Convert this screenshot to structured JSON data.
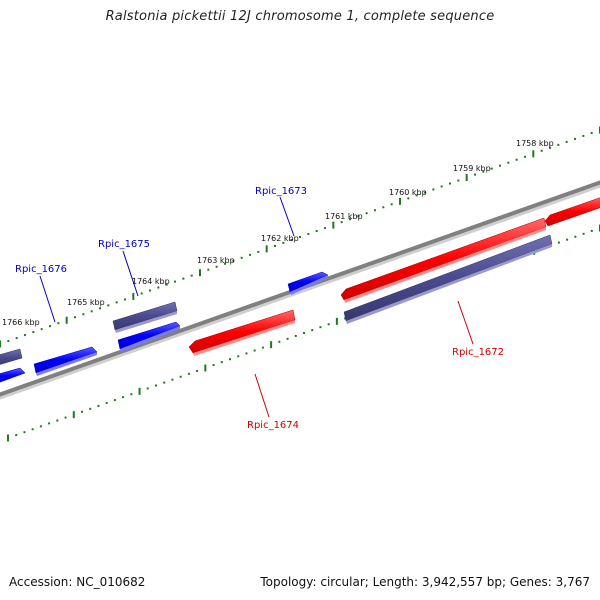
{
  "title": "Ralstonia pickettii 12J chromosome 1, complete sequence",
  "footer": {
    "accession": "Accession: NC_010682",
    "summary": "Topology: circular; Length: 3,942,557 bp; Genes: 3,767"
  },
  "colors": {
    "backbone": "#808080",
    "tick": "#1e7a1e",
    "forward_label": "#0000cc",
    "reverse_label": "#cc0000",
    "forward_gene": "#0000ff",
    "reverse_gene": "#ff0000",
    "gene_dark": "#4a4a8f"
  },
  "scale_ticks": [
    {
      "label": "1758 kbp"
    },
    {
      "label": "1759 kbp"
    },
    {
      "label": "1760 kbp"
    },
    {
      "label": "1761 kbp"
    },
    {
      "label": "1762 kbp"
    },
    {
      "label": "1763 kbp"
    },
    {
      "label": "1764 kbp"
    },
    {
      "label": "1765 kbp"
    },
    {
      "label": "1766 kbp"
    }
  ],
  "gene_labels": [
    {
      "name": "Rpic_1673",
      "strand": "forward"
    },
    {
      "name": "Rpic_1675",
      "strand": "forward"
    },
    {
      "name": "Rpic_1676",
      "strand": "forward"
    },
    {
      "name": "Rpic_1672",
      "strand": "reverse"
    },
    {
      "name": "Rpic_1674",
      "strand": "reverse"
    }
  ]
}
